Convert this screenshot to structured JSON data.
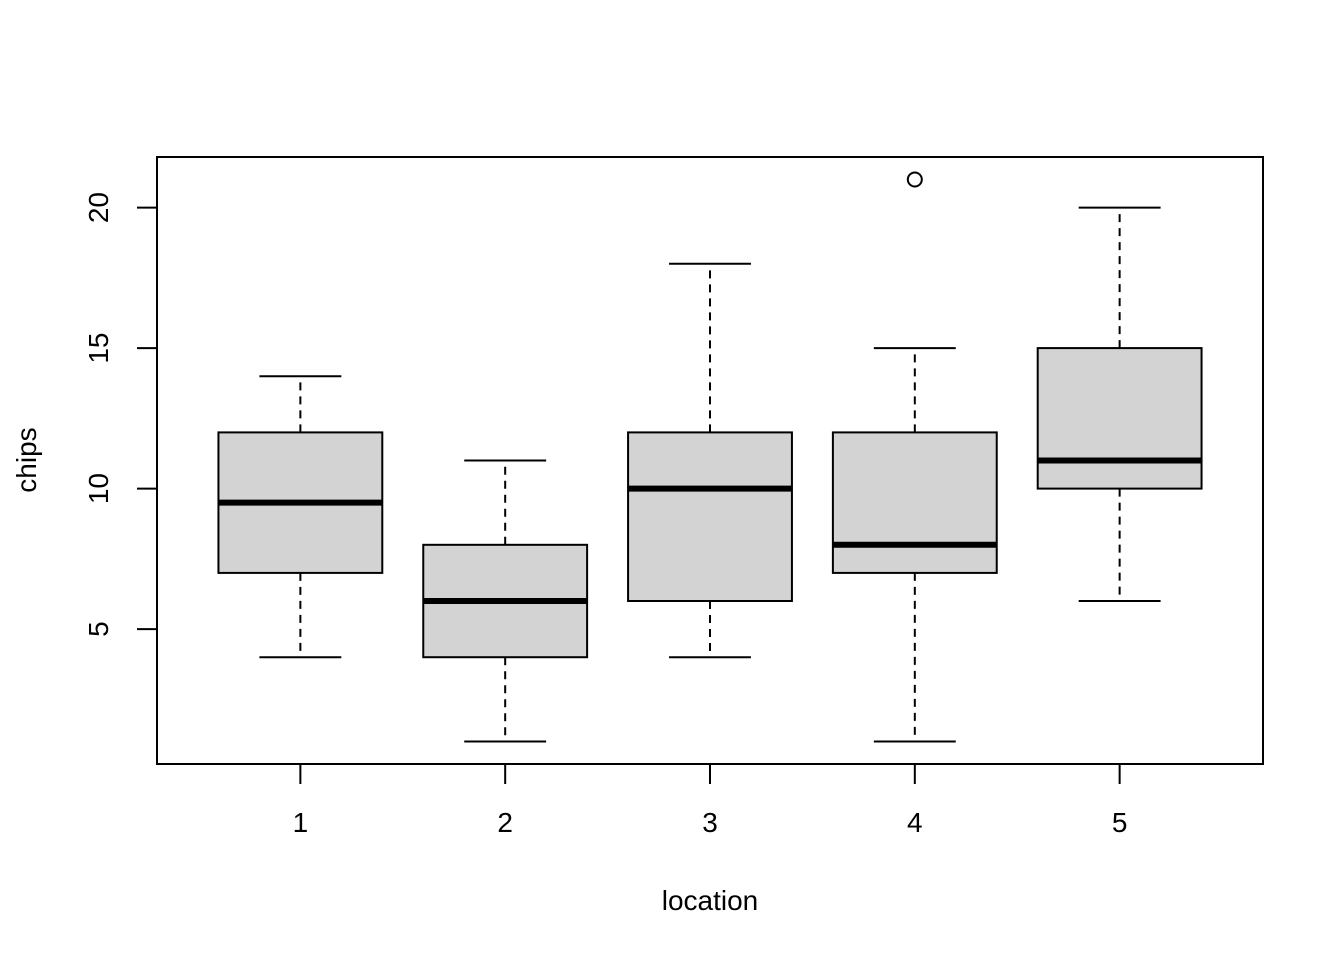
{
  "chart_data": {
    "type": "boxplot",
    "title": "",
    "xlabel": "location",
    "ylabel": "chips",
    "categories": [
      "1",
      "2",
      "3",
      "4",
      "5"
    ],
    "yticks": [
      5,
      10,
      15,
      20
    ],
    "ylim": [
      0.2,
      21.8
    ],
    "grid": false,
    "boxes": [
      {
        "category": "1",
        "whisker_low": 4,
        "q1": 7,
        "median": 9.5,
        "q3": 12,
        "whisker_high": 14,
        "outliers": []
      },
      {
        "category": "2",
        "whisker_low": 1,
        "q1": 4,
        "median": 6,
        "q3": 8,
        "whisker_high": 11,
        "outliers": []
      },
      {
        "category": "3",
        "whisker_low": 4,
        "q1": 6,
        "median": 10,
        "q3": 12,
        "whisker_high": 18,
        "outliers": []
      },
      {
        "category": "4",
        "whisker_low": 1,
        "q1": 7,
        "median": 8,
        "q3": 12,
        "whisker_high": 15,
        "outliers": [
          21
        ]
      },
      {
        "category": "5",
        "whisker_low": 6,
        "q1": 10,
        "median": 11,
        "q3": 15,
        "whisker_high": 20,
        "outliers": []
      }
    ],
    "colors": {
      "box_fill": "#d3d3d3",
      "stroke": "#000000"
    }
  }
}
